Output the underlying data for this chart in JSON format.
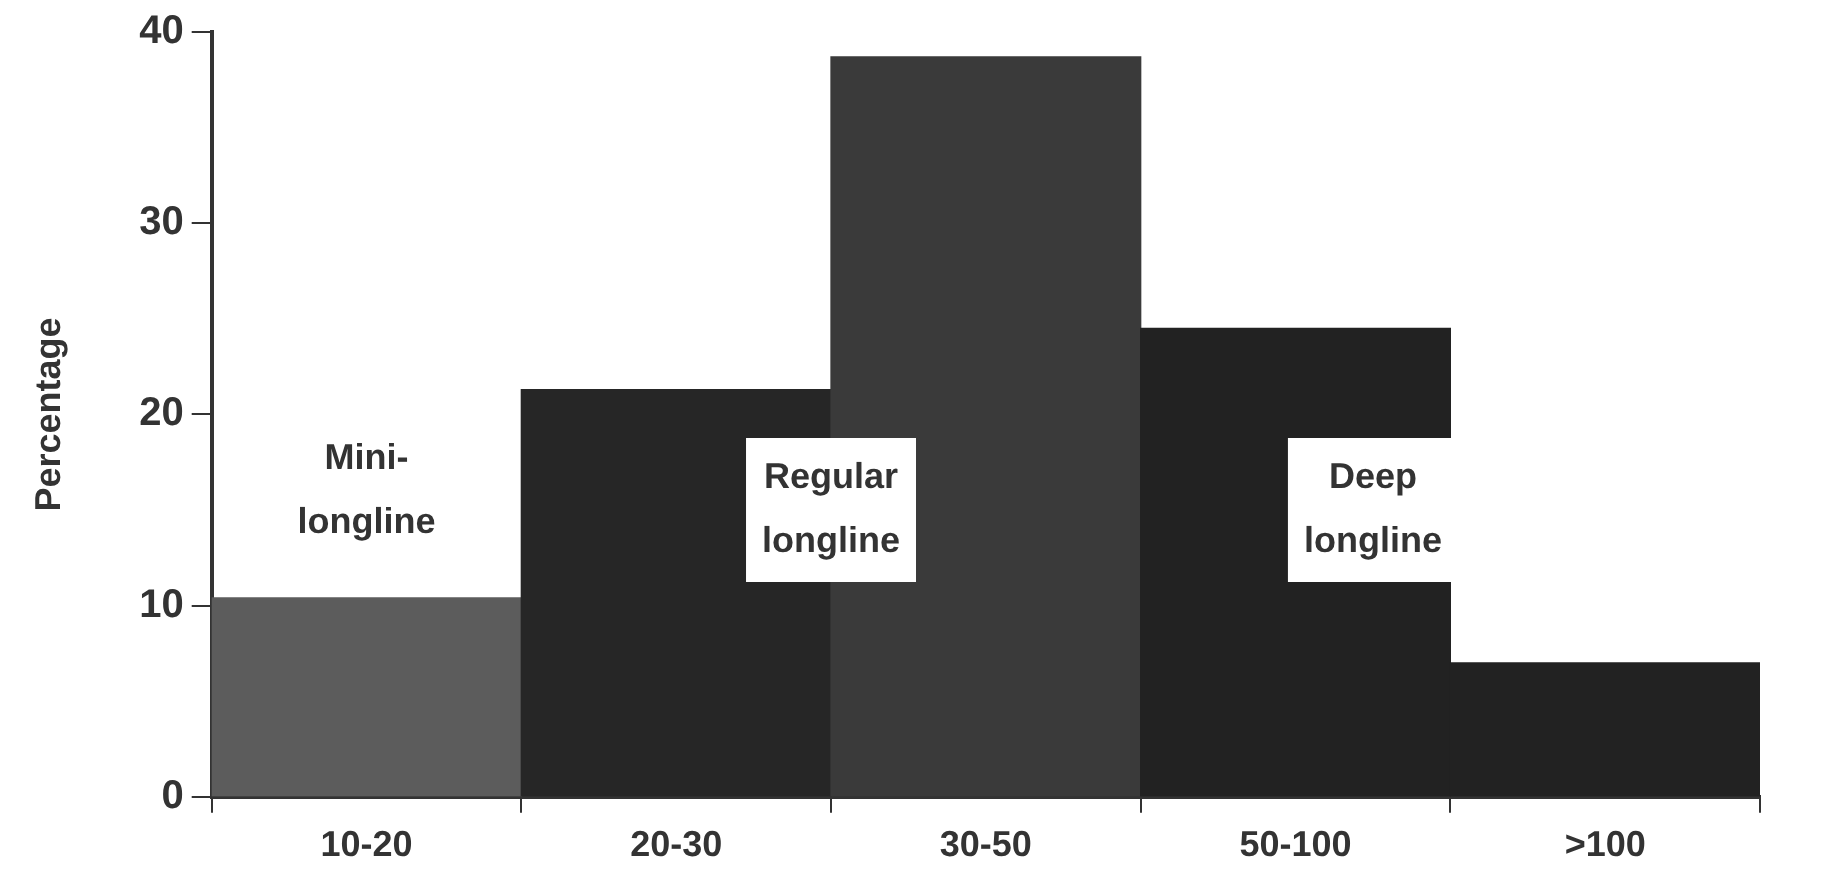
{
  "chart_data": {
    "type": "bar",
    "ylabel": "Percentage",
    "categories": [
      "10-20",
      "20-30",
      "30-50",
      "50-100",
      ">100"
    ],
    "values": [
      10.4,
      21.3,
      38.7,
      24.5,
      7.0
    ],
    "colors": [
      "#5c5c5c",
      "#262626",
      "#3a3a3a",
      "#222222",
      "#222222"
    ],
    "ylim": [
      0,
      40
    ],
    "yticks": [
      0,
      10,
      20,
      30,
      40
    ],
    "grid": false,
    "legend": false,
    "annotations": [
      "Mini-longline",
      "Regular longline",
      "Deep longline"
    ]
  }
}
